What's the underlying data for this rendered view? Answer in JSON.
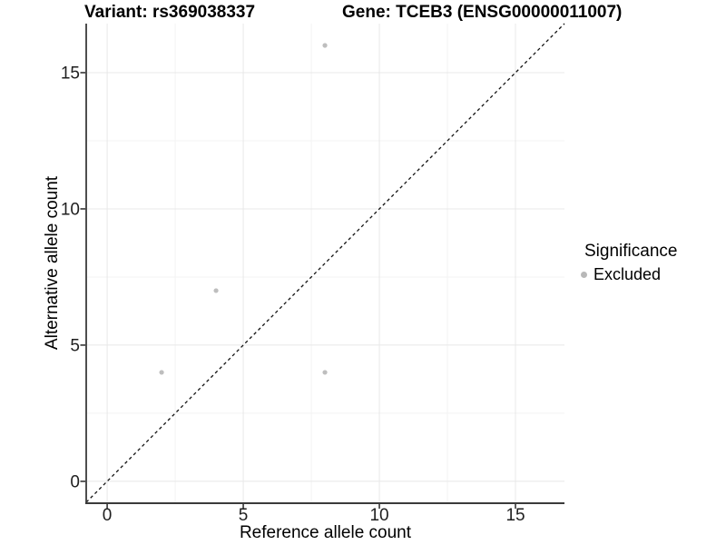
{
  "colors": {
    "background": "#ffffff",
    "grid_major": "#e8e8e8",
    "grid_minor": "#f3f3f3",
    "axis_line": "#3a3a3a",
    "tick_mark": "#343434",
    "tick_label": "#1f1f1f",
    "identity_line": "#111111",
    "point": "#bebebe",
    "legend_key": "#b8b8b8"
  },
  "chart_data": {
    "type": "scatter",
    "titles": {
      "variant": "Variant: rs369038337",
      "gene": "Gene: TCEB3 (ENSG00000011007)"
    },
    "xlabel": "Reference allele count",
    "ylabel": "Alternative allele count",
    "xlim": [
      -0.77,
      16.8
    ],
    "ylim": [
      -0.77,
      16.8
    ],
    "xticks": [
      0,
      5,
      10,
      15
    ],
    "yticks": [
      0,
      5,
      10,
      15
    ],
    "xminor": [
      2.5,
      7.5,
      12.5
    ],
    "yminor": [
      2.5,
      7.5,
      12.5
    ],
    "grid": true,
    "identity_line": {
      "slope": 1,
      "intercept": 0,
      "style": "dashed"
    },
    "series": [
      {
        "name": "Excluded",
        "color": "#bebebe",
        "points": [
          {
            "x": 2,
            "y": 4
          },
          {
            "x": 4,
            "y": 7
          },
          {
            "x": 8,
            "y": 4
          },
          {
            "x": 8,
            "y": 16
          }
        ]
      }
    ],
    "legend": {
      "title": "Significance",
      "position": "right",
      "entries": [
        {
          "label": "Excluded",
          "color": "#b8b8b8"
        }
      ]
    }
  }
}
